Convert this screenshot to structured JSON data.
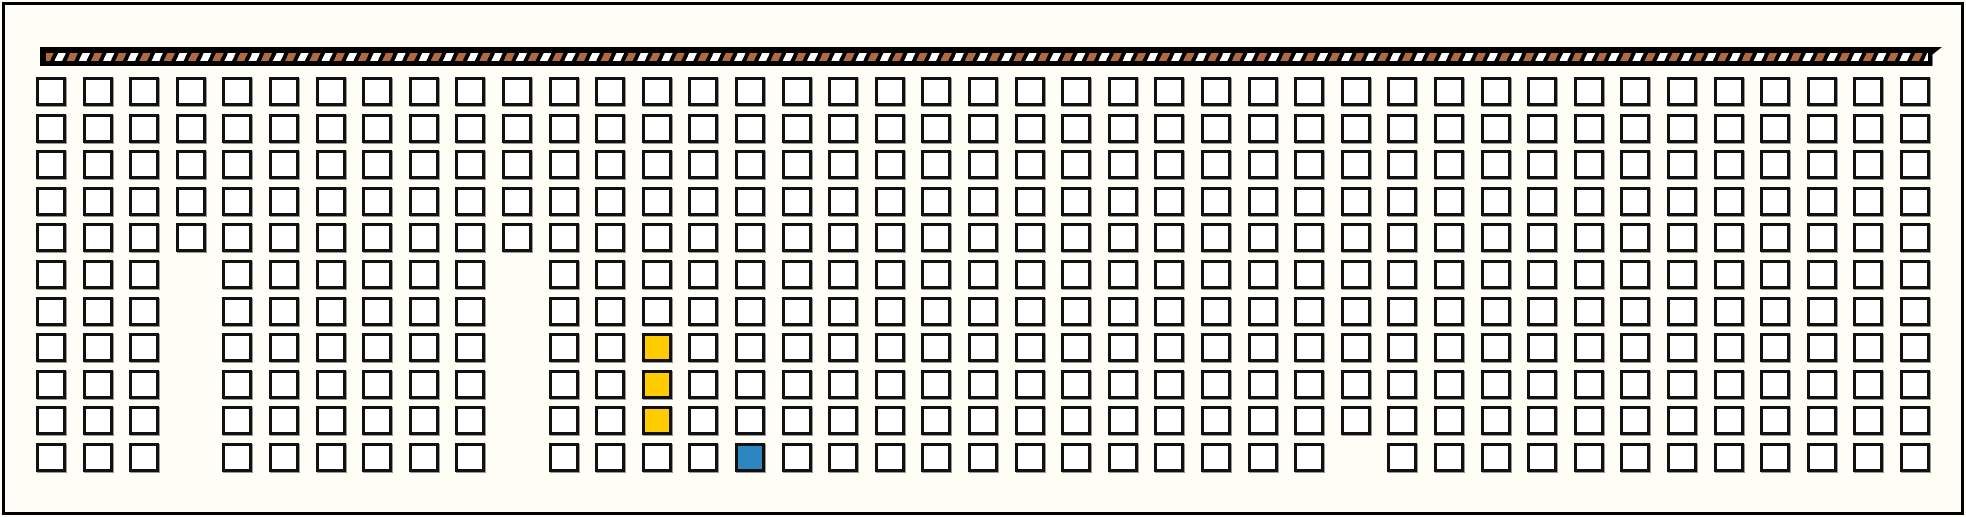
{
  "board": {
    "columns": 41,
    "rows": 11,
    "missing_cells": [
      [
        3,
        5
      ],
      [
        3,
        6
      ],
      [
        3,
        7
      ],
      [
        3,
        8
      ],
      [
        3,
        9
      ],
      [
        3,
        10
      ],
      [
        10,
        5
      ],
      [
        10,
        6
      ],
      [
        10,
        7
      ],
      [
        10,
        8
      ],
      [
        10,
        9
      ],
      [
        10,
        10
      ],
      [
        28,
        10
      ]
    ],
    "colored_cells": [
      {
        "col": 13,
        "row": 7,
        "color": "#ffcc00"
      },
      {
        "col": 13,
        "row": 8,
        "color": "#ffcc00"
      },
      {
        "col": 13,
        "row": 9,
        "color": "#ffcc00"
      },
      {
        "col": 15,
        "row": 10,
        "color": "#2e86c1"
      }
    ],
    "empty_color": "#ffffff"
  },
  "top_bar": {
    "stripe_colors": [
      "#b06a3e",
      "#ffffff"
    ],
    "background": "#000000"
  }
}
